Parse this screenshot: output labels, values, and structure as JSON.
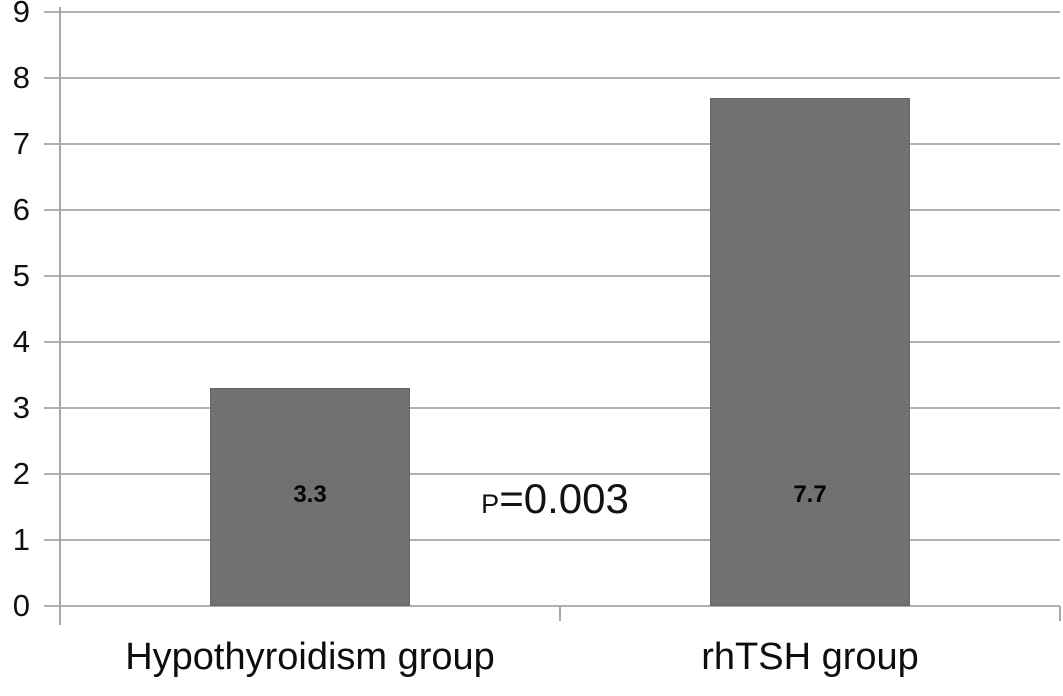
{
  "chart_data": {
    "type": "bar",
    "categories": [
      "Hypothyroidism group",
      "rhTSH group"
    ],
    "values": [
      3.3,
      7.7
    ],
    "value_labels": [
      "3.3",
      "7.7"
    ],
    "series": [
      {
        "name": "",
        "values": [
          3.3,
          7.7
        ]
      }
    ],
    "title": "",
    "xlabel": "",
    "ylabel": "",
    "ylim": [
      0,
      9
    ],
    "yticks": [
      "0",
      "1",
      "2",
      "3",
      "4",
      "5",
      "6",
      "7",
      "8",
      "9"
    ],
    "grid": true,
    "legend": false,
    "annotation": "P=0.003",
    "annotation_prefix": "P",
    "annotation_rest": "=0.003",
    "bar_color": "#717171",
    "bar_border_color": "#656565",
    "gridline_color": "#b0b0b0",
    "axis_color": "#a8a8a8",
    "text_color": "#111111"
  }
}
